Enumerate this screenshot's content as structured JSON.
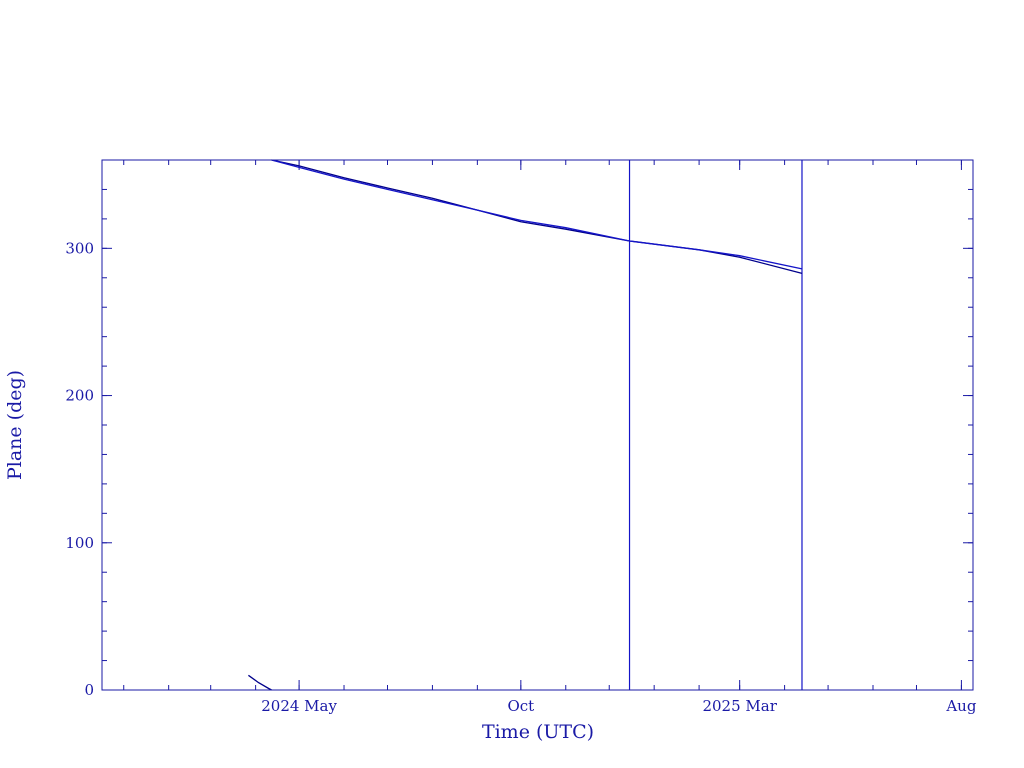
{
  "chart_data": {
    "type": "line",
    "xlabel": "Time (UTC)",
    "ylabel": "Plane (deg)",
    "xlim": [
      "2023-12-17",
      "2025-08-09"
    ],
    "ylim": [
      0,
      360
    ],
    "x_ticks": [
      {
        "date": "2024-05-01",
        "label": "2024 May"
      },
      {
        "date": "2024-10-01",
        "label": "Oct"
      },
      {
        "date": "2025-03-01",
        "label": "2025 Mar"
      },
      {
        "date": "2025-08-01",
        "label": "Aug"
      }
    ],
    "y_ticks": [
      0,
      100,
      200,
      300
    ],
    "series": [
      {
        "color": "#00008b",
        "points": [
          [
            "2024-03-27",
            10
          ],
          [
            "2024-04-03",
            5
          ],
          [
            "2024-04-10",
            1
          ],
          [
            "2024-04-12",
            0
          ],
          [
            "2024-04-12",
            360
          ],
          [
            "2024-05-01",
            356
          ],
          [
            "2024-06-01",
            348
          ],
          [
            "2024-07-01",
            341
          ],
          [
            "2024-08-01",
            334
          ],
          [
            "2024-09-01",
            326
          ],
          [
            "2024-10-01",
            318
          ],
          [
            "2024-11-01",
            313
          ],
          [
            "2024-12-15",
            305
          ],
          [
            "2025-02-01",
            299
          ],
          [
            "2025-03-01",
            294
          ],
          [
            "2025-04-13",
            283
          ]
        ]
      },
      {
        "color": "#1414c8",
        "points": [
          [
            "2024-04-12",
            360
          ],
          [
            "2024-05-01",
            355
          ],
          [
            "2024-06-01",
            347
          ],
          [
            "2024-07-01",
            340
          ],
          [
            "2024-08-01",
            333
          ],
          [
            "2024-09-01",
            326
          ],
          [
            "2024-10-01",
            319
          ],
          [
            "2024-11-01",
            314
          ],
          [
            "2024-12-15",
            305
          ],
          [
            "2025-02-01",
            299
          ],
          [
            "2025-03-01",
            295
          ],
          [
            "2025-04-13",
            286
          ]
        ]
      }
    ],
    "vertical_lines": [
      {
        "date": "2024-12-15",
        "color": "#1414c8"
      },
      {
        "date": "2025-04-13",
        "color": "#1414c8"
      }
    ],
    "axis_color": "#1a1aa6"
  }
}
